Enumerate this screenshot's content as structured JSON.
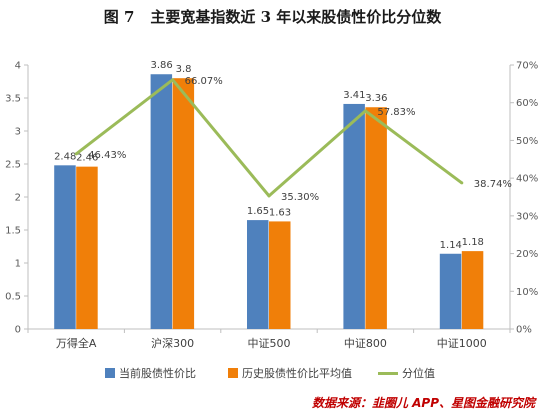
{
  "figure_label": "图 7",
  "title": "主要宽基指数近 3 年以来股债性价比分位数",
  "source": "数据来源：韭圈儿 APP、星图金融研究院",
  "colors": {
    "current": "#4f81bd",
    "historical_avg": "#f07f09",
    "percentile": "#9bbb59",
    "axis": "#bfbfbf",
    "text": "#404040",
    "source": "#c00000"
  },
  "chart_data": {
    "type": "bar",
    "categories": [
      "万得全A",
      "沪深300",
      "中证500",
      "中证800",
      "中证1000"
    ],
    "series": [
      {
        "name": "当前股债性价比",
        "type": "bar",
        "axis": "left",
        "values": [
          2.48,
          3.86,
          1.65,
          3.41,
          1.14
        ]
      },
      {
        "name": "历史股债性价比平均值",
        "type": "bar",
        "axis": "left",
        "values": [
          2.46,
          3.8,
          1.63,
          3.36,
          1.18
        ]
      },
      {
        "name": "分位值",
        "type": "line",
        "axis": "right",
        "unit": "%",
        "values": [
          46.43,
          66.07,
          35.3,
          57.83,
          38.74
        ]
      }
    ],
    "ylim": [
      0,
      4
    ],
    "yticks": [
      0,
      0.5,
      1,
      1.5,
      2,
      2.5,
      3,
      3.5,
      4
    ],
    "y2lim": [
      0,
      70
    ],
    "y2ticks": [
      0,
      10,
      20,
      30,
      40,
      50,
      60,
      70
    ],
    "y2_unit": "%",
    "grid": false,
    "legend": "bottom"
  }
}
